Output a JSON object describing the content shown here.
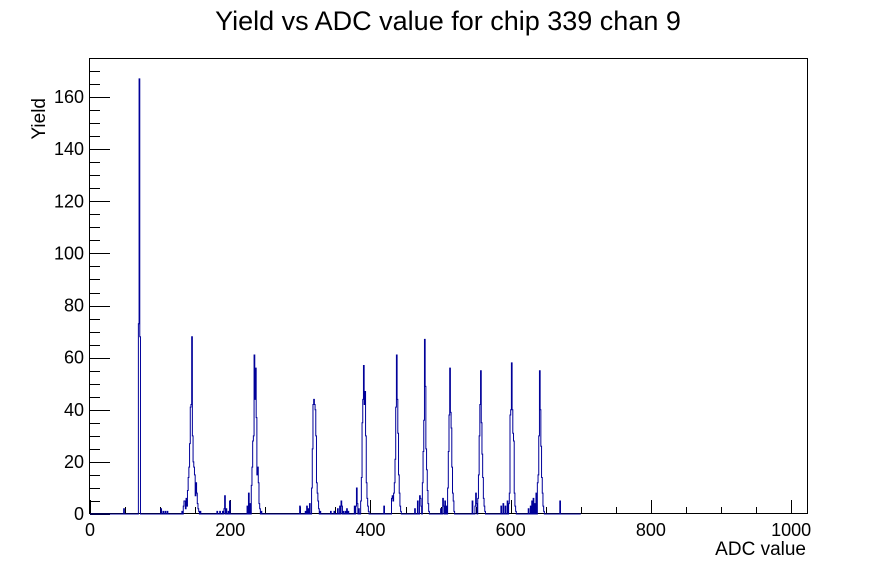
{
  "chart_data": {
    "type": "bar",
    "title": "Yield vs ADC value for chip 339 chan 9",
    "xlabel": "ADC value",
    "ylabel": "Yield",
    "xlim": [
      0,
      1024
    ],
    "ylim": [
      0,
      175
    ],
    "x_ticks": [
      0,
      200,
      400,
      600,
      800,
      1000
    ],
    "y_ticks": [
      0,
      20,
      40,
      60,
      80,
      100,
      120,
      140,
      160
    ],
    "grid": false,
    "legend": "none",
    "line_color": "#000099",
    "series": [
      {
        "bins": [
          [
            48,
            2
          ],
          [
            69,
            73
          ],
          [
            70,
            167
          ],
          [
            71,
            68
          ],
          [
            101,
            2
          ],
          [
            104,
            1
          ],
          [
            107,
            1
          ],
          [
            110,
            1
          ],
          [
            131,
            1
          ],
          [
            133,
            3
          ],
          [
            134,
            5
          ],
          [
            135,
            5
          ],
          [
            136,
            2
          ],
          [
            137,
            6
          ],
          [
            138,
            3
          ],
          [
            139,
            9
          ],
          [
            140,
            14
          ],
          [
            141,
            18
          ],
          [
            142,
            27
          ],
          [
            143,
            41
          ],
          [
            144,
            42
          ],
          [
            145,
            68
          ],
          [
            146,
            30
          ],
          [
            147,
            20
          ],
          [
            148,
            18
          ],
          [
            149,
            15
          ],
          [
            150,
            7
          ],
          [
            151,
            12
          ],
          [
            152,
            8
          ],
          [
            153,
            4
          ],
          [
            154,
            2
          ],
          [
            155,
            1
          ],
          [
            157,
            1
          ],
          [
            181,
            1
          ],
          [
            185,
            1
          ],
          [
            189,
            1
          ],
          [
            191,
            2
          ],
          [
            192,
            7
          ],
          [
            194,
            2
          ],
          [
            197,
            1
          ],
          [
            199,
            5
          ],
          [
            224,
            3
          ],
          [
            226,
            8
          ],
          [
            228,
            4
          ],
          [
            230,
            11
          ],
          [
            231,
            18
          ],
          [
            232,
            28
          ],
          [
            233,
            30
          ],
          [
            234,
            61
          ],
          [
            235,
            44
          ],
          [
            236,
            56
          ],
          [
            237,
            37
          ],
          [
            238,
            15
          ],
          [
            239,
            18
          ],
          [
            240,
            12
          ],
          [
            241,
            4
          ],
          [
            242,
            2
          ],
          [
            244,
            1
          ],
          [
            299,
            3
          ],
          [
            307,
            1
          ],
          [
            309,
            3
          ],
          [
            311,
            2
          ],
          [
            313,
            4
          ],
          [
            316,
            10
          ],
          [
            317,
            25
          ],
          [
            318,
            42
          ],
          [
            319,
            44
          ],
          [
            320,
            42
          ],
          [
            321,
            40
          ],
          [
            322,
            30
          ],
          [
            323,
            12
          ],
          [
            324,
            8
          ],
          [
            325,
            5
          ],
          [
            326,
            2
          ],
          [
            328,
            1
          ],
          [
            343,
            1
          ],
          [
            348,
            1
          ],
          [
            353,
            2
          ],
          [
            356,
            3
          ],
          [
            358,
            5
          ],
          [
            359,
            3
          ],
          [
            361,
            1
          ],
          [
            364,
            1
          ],
          [
            366,
            2
          ],
          [
            368,
            1
          ],
          [
            377,
            3
          ],
          [
            379,
            3
          ],
          [
            380,
            10
          ],
          [
            381,
            4
          ],
          [
            383,
            2
          ],
          [
            386,
            5
          ],
          [
            387,
            14
          ],
          [
            388,
            35
          ],
          [
            389,
            44
          ],
          [
            390,
            57
          ],
          [
            391,
            42
          ],
          [
            392,
            47
          ],
          [
            393,
            30
          ],
          [
            394,
            12
          ],
          [
            395,
            6
          ],
          [
            396,
            3
          ],
          [
            397,
            1
          ],
          [
            419,
            3
          ],
          [
            430,
            6
          ],
          [
            431,
            7
          ],
          [
            432,
            5
          ],
          [
            433,
            8
          ],
          [
            434,
            12
          ],
          [
            435,
            21
          ],
          [
            436,
            41
          ],
          [
            437,
            61
          ],
          [
            438,
            44
          ],
          [
            439,
            31
          ],
          [
            440,
            15
          ],
          [
            441,
            8
          ],
          [
            442,
            3
          ],
          [
            443,
            1
          ],
          [
            463,
            2
          ],
          [
            467,
            5
          ],
          [
            470,
            7
          ],
          [
            471,
            6
          ],
          [
            472,
            3
          ],
          [
            474,
            12
          ],
          [
            475,
            24
          ],
          [
            476,
            36
          ],
          [
            477,
            67
          ],
          [
            478,
            49
          ],
          [
            479,
            25
          ],
          [
            480,
            17
          ],
          [
            481,
            9
          ],
          [
            482,
            4
          ],
          [
            483,
            1
          ],
          [
            500,
            2
          ],
          [
            503,
            6
          ],
          [
            504,
            3
          ],
          [
            506,
            5
          ],
          [
            508,
            3
          ],
          [
            510,
            10
          ],
          [
            511,
            24
          ],
          [
            512,
            38
          ],
          [
            513,
            56
          ],
          [
            514,
            39
          ],
          [
            515,
            33
          ],
          [
            516,
            18
          ],
          [
            517,
            8
          ],
          [
            518,
            5
          ],
          [
            519,
            1
          ],
          [
            545,
            5
          ],
          [
            549,
            3
          ],
          [
            550,
            8
          ],
          [
            551,
            4
          ],
          [
            553,
            6
          ],
          [
            554,
            15
          ],
          [
            555,
            30
          ],
          [
            556,
            42
          ],
          [
            557,
            55
          ],
          [
            558,
            35
          ],
          [
            559,
            23
          ],
          [
            560,
            14
          ],
          [
            561,
            6
          ],
          [
            562,
            3
          ],
          [
            563,
            1
          ],
          [
            586,
            3
          ],
          [
            589,
            4
          ],
          [
            592,
            3
          ],
          [
            595,
            5
          ],
          [
            597,
            4
          ],
          [
            598,
            8
          ],
          [
            599,
            38
          ],
          [
            600,
            40
          ],
          [
            601,
            58
          ],
          [
            602,
            40
          ],
          [
            603,
            31
          ],
          [
            604,
            28
          ],
          [
            605,
            8
          ],
          [
            606,
            3
          ],
          [
            607,
            1
          ],
          [
            625,
            2
          ],
          [
            628,
            3
          ],
          [
            630,
            5
          ],
          [
            632,
            6
          ],
          [
            634,
            4
          ],
          [
            636,
            8
          ],
          [
            638,
            12
          ],
          [
            639,
            15
          ],
          [
            640,
            30
          ],
          [
            641,
            55
          ],
          [
            642,
            40
          ],
          [
            643,
            26
          ],
          [
            644,
            14
          ],
          [
            645,
            8
          ],
          [
            646,
            3
          ],
          [
            647,
            1
          ],
          [
            670,
            5
          ]
        ]
      }
    ]
  }
}
